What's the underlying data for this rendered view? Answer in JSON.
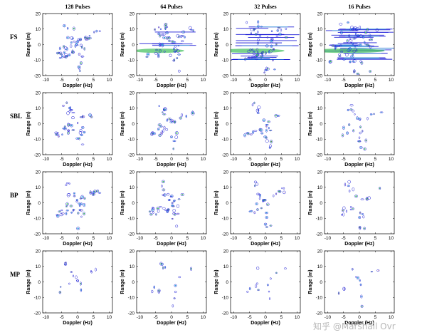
{
  "chart_data": {
    "type": "contour-grid",
    "column_titles": [
      "128 Pulses",
      "64 Pulses",
      "32 Pulses",
      "16 Pulses"
    ],
    "row_labels": [
      "FS",
      "SBL",
      "BP",
      "MP"
    ],
    "xlabel": "Doppler (Hz)",
    "ylabel": "Range (m)",
    "xlim": [
      -11,
      11
    ],
    "ylim": [
      -20,
      20
    ],
    "xticks": [
      -10,
      -5,
      0,
      5,
      10
    ],
    "yticks": [
      -20,
      -10,
      0,
      10,
      20
    ],
    "colormap": [
      "#1f1fd6",
      "#2aa7d6",
      "#3fbf5a",
      "#b0b010",
      "#c0306a"
    ],
    "target_structure": {
      "description_points": [
        {
          "x": -3.5,
          "y": 12
        },
        {
          "x": -2.5,
          "y": 9
        },
        {
          "x": -2,
          "y": 6
        },
        {
          "x": -1,
          "y": 3
        },
        {
          "x": 0,
          "y": 1
        },
        {
          "x": 2,
          "y": 3
        },
        {
          "x": 4,
          "y": 6
        },
        {
          "x": 6,
          "y": 8
        },
        {
          "x": 1,
          "y": -2
        },
        {
          "x": 1,
          "y": -6
        },
        {
          "x": 1,
          "y": -10
        },
        {
          "x": 1,
          "y": -15
        },
        {
          "x": -3,
          "y": -2
        },
        {
          "x": -5,
          "y": -4
        },
        {
          "x": -6,
          "y": -7
        },
        {
          "x": -4,
          "y": -6
        },
        {
          "x": -2,
          "y": -5
        }
      ]
    }
  },
  "watermark": "知乎 @Marshall Ovr"
}
